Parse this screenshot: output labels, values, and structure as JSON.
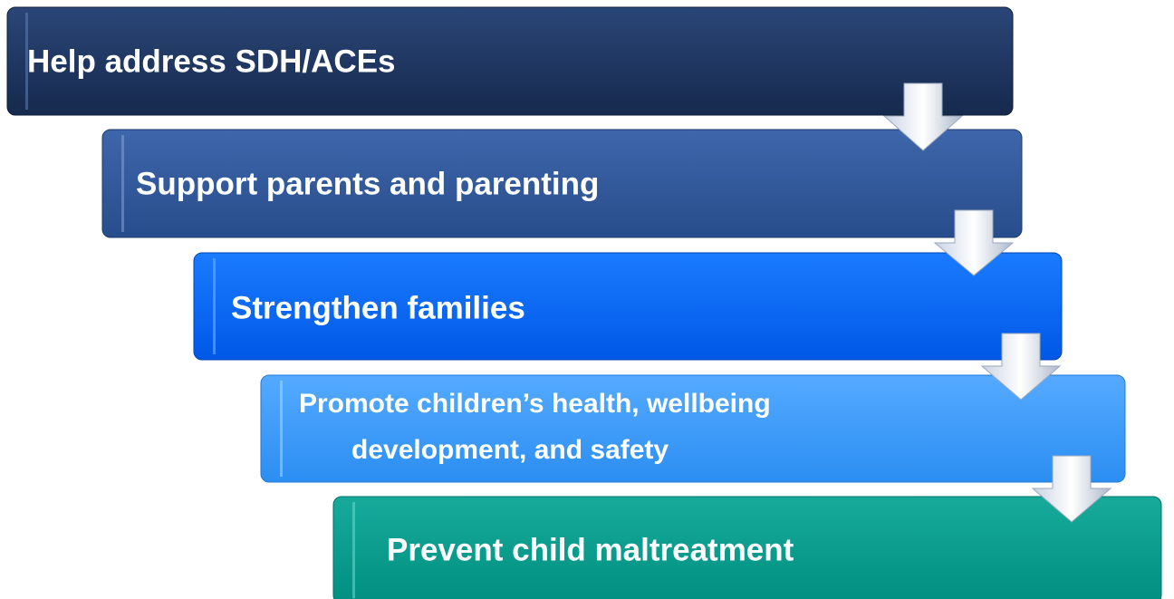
{
  "nodes": [
    {
      "lines": [
        "Help address SDH/ACEs"
      ]
    },
    {
      "lines": [
        "Support parents and parenting"
      ]
    },
    {
      "lines": [
        "Strengthen families"
      ]
    },
    {
      "lines": [
        "Promote children’s health, wellbeing",
        "development, and safety"
      ]
    },
    {
      "lines": [
        "Prevent child maltreatment"
      ]
    }
  ]
}
